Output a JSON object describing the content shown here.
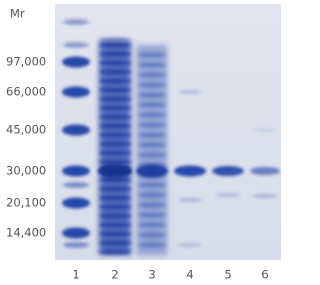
{
  "header": {
    "title": "Mr"
  },
  "markers": [
    "97,000",
    "66,000",
    "45,000",
    "30,000",
    "20,100",
    "14,400"
  ],
  "lanes": [
    "1",
    "2",
    "3",
    "4",
    "5",
    "6"
  ]
}
